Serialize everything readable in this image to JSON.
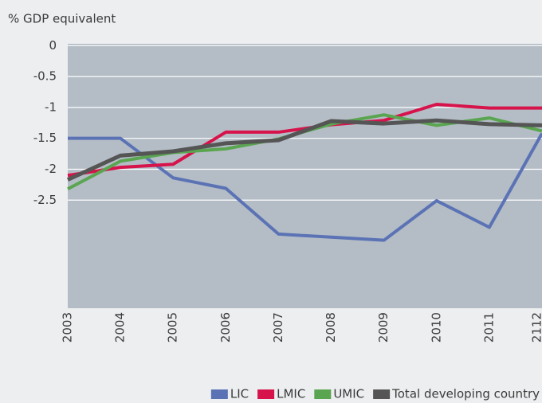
{
  "chart_data": {
    "type": "line",
    "y_label": "% GDP equivalent",
    "categories": [
      "2003",
      "2004",
      "2005",
      "2006",
      "2007",
      "2008",
      "2009",
      "2010",
      "2011",
      "2112"
    ],
    "series": [
      {
        "name": "LIC",
        "color": "#5b73b5",
        "values": [
          -1.5,
          -1.5,
          -2.14,
          -2.31,
          -3.05,
          -3.1,
          -3.15,
          -2.51,
          -2.94,
          -1.42
        ]
      },
      {
        "name": "LMIC",
        "color": "#d6134b",
        "values": [
          -2.1,
          -1.97,
          -1.92,
          -1.4,
          -1.4,
          -1.28,
          -1.21,
          -0.95,
          -1.01,
          -1.01
        ]
      },
      {
        "name": "UMIC",
        "color": "#5aa550",
        "values": [
          -2.32,
          -1.87,
          -1.73,
          -1.67,
          -1.51,
          -1.27,
          -1.12,
          -1.29,
          -1.17,
          -1.38
        ]
      },
      {
        "name": "Total developing country",
        "color": "#555555",
        "values": [
          -2.17,
          -1.78,
          -1.71,
          -1.58,
          -1.53,
          -1.22,
          -1.26,
          -1.21,
          -1.27,
          -1.29
        ]
      }
    ],
    "ylim": [
      -4.25,
      0.03
    ],
    "yticks": [
      0,
      -0.5,
      -1,
      -1.5,
      -2,
      -2.5
    ],
    "grid": true,
    "legend": "bottom-right"
  }
}
